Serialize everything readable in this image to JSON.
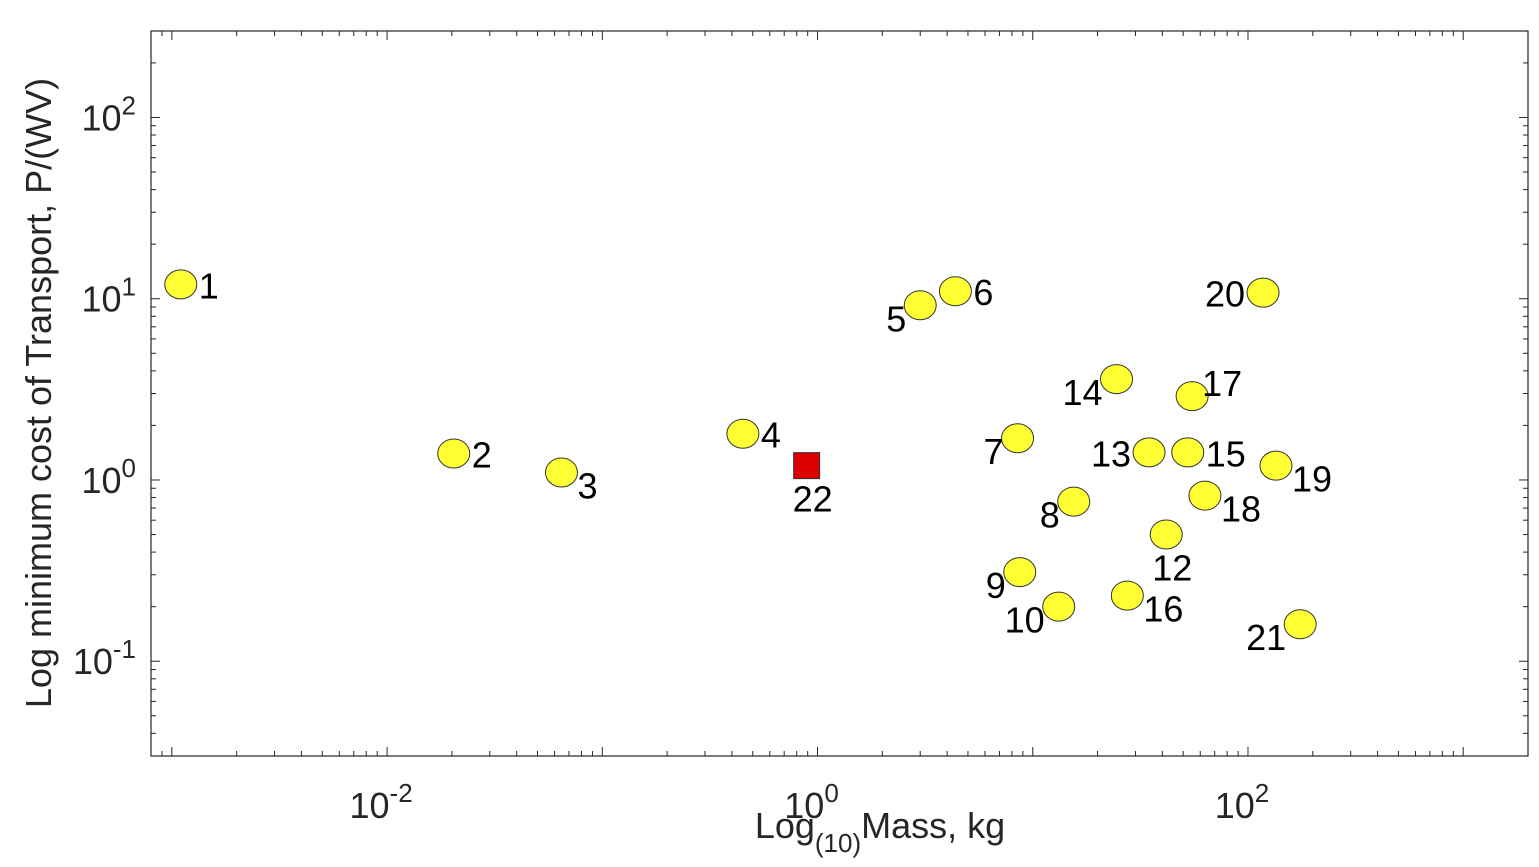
{
  "chart_data": {
    "type": "scatter",
    "xlabel": {
      "prefix": "Log",
      "subscript": "(10)",
      "suffix": "Mass, kg"
    },
    "ylabel": "Log minimum cost of Transport, P/(WV)",
    "xscale": "log",
    "yscale": "log",
    "xlim": [
      0.0008,
      2000
    ],
    "ylim": [
      0.03,
      300
    ],
    "xticks": [
      {
        "value": 0.01,
        "base": "10",
        "exp": "-2"
      },
      {
        "value": 1,
        "base": "10",
        "exp": "0"
      },
      {
        "value": 100,
        "base": "10",
        "exp": "2"
      }
    ],
    "yticks": [
      {
        "value": 0.1,
        "base": "10",
        "exp": "-1"
      },
      {
        "value": 1,
        "base": "10",
        "exp": "0"
      },
      {
        "value": 10,
        "base": "10",
        "exp": "1"
      },
      {
        "value": 100,
        "base": "10",
        "exp": "2"
      }
    ],
    "grid": false,
    "series": [
      {
        "marker": "ellipse",
        "color": "#ffff33",
        "edge_color": "#333333",
        "points": [
          {
            "id": "1",
            "x": 0.0011,
            "y": 12.0,
            "label_pos": "right"
          },
          {
            "id": "2",
            "x": 0.0204,
            "y": 1.4,
            "label_pos": "right"
          },
          {
            "id": "3",
            "x": 0.0646,
            "y": 1.1,
            "label_pos": "lower-right"
          },
          {
            "id": "4",
            "x": 0.45,
            "y": 1.8,
            "label_pos": "right"
          },
          {
            "id": "5",
            "x": 3.0,
            "y": 9.2,
            "label_pos": "lower-left"
          },
          {
            "id": "6",
            "x": 4.37,
            "y": 11.0,
            "label_pos": "right"
          },
          {
            "id": "7",
            "x": 8.5,
            "y": 1.7,
            "label_pos": "lower-left"
          },
          {
            "id": "8",
            "x": 15.5,
            "y": 0.76,
            "label_pos": "lower-left"
          },
          {
            "id": "9",
            "x": 8.7,
            "y": 0.31,
            "label_pos": "lower-left"
          },
          {
            "id": "10",
            "x": 13.2,
            "y": 0.2,
            "label_pos": "lower-left"
          },
          {
            "id": "12",
            "x": 41.7,
            "y": 0.5,
            "label_pos": "below"
          },
          {
            "id": "13",
            "x": 34.7,
            "y": 1.42,
            "label_pos": "left"
          },
          {
            "id": "14",
            "x": 24.5,
            "y": 3.6,
            "label_pos": "lower-left"
          },
          {
            "id": "15",
            "x": 52.5,
            "y": 1.42,
            "label_pos": "right"
          },
          {
            "id": "16",
            "x": 27.5,
            "y": 0.23,
            "label_pos": "lower-right"
          },
          {
            "id": "17",
            "x": 55.0,
            "y": 2.9,
            "label_pos": "upper-right"
          },
          {
            "id": "18",
            "x": 63.1,
            "y": 0.82,
            "label_pos": "lower-right"
          },
          {
            "id": "19",
            "x": 134.9,
            "y": 1.2,
            "label_pos": "lower-right"
          },
          {
            "id": "20",
            "x": 117.5,
            "y": 10.8,
            "label_pos": "left"
          },
          {
            "id": "21",
            "x": 174.8,
            "y": 0.16,
            "label_pos": "lower-left"
          }
        ]
      },
      {
        "marker": "square",
        "color": "#dd0000",
        "edge_color": "#333333",
        "points": [
          {
            "id": "22",
            "x": 0.89,
            "y": 1.2,
            "label_pos": "below"
          }
        ]
      }
    ]
  }
}
